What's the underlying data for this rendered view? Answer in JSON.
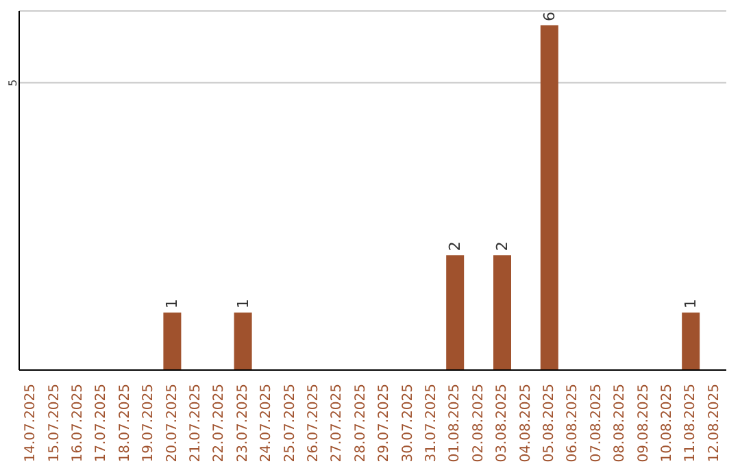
{
  "chart_data": {
    "type": "bar",
    "categories": [
      "14.07.2025",
      "15.07.2025",
      "16.07.2025",
      "17.07.2025",
      "18.07.2025",
      "19.07.2025",
      "20.07.2025",
      "21.07.2025",
      "22.07.2025",
      "23.07.2025",
      "24.07.2025",
      "25.07.2025",
      "26.07.2025",
      "27.07.2025",
      "28.07.2025",
      "29.07.2025",
      "30.07.2025",
      "31.07.2025",
      "01.08.2025",
      "02.08.2025",
      "03.08.2025",
      "04.08.2025",
      "05.08.2025",
      "06.08.2025",
      "07.08.2025",
      "08.08.2025",
      "09.08.2025",
      "10.08.2025",
      "11.08.2025",
      "12.08.2025"
    ],
    "values": [
      0,
      0,
      0,
      0,
      0,
      0,
      1,
      0,
      0,
      1,
      0,
      0,
      0,
      0,
      0,
      0,
      0,
      0,
      2,
      0,
      2,
      0,
      6,
      0,
      0,
      0,
      0,
      0,
      1,
      0
    ],
    "value_labels": [
      null,
      null,
      null,
      null,
      null,
      null,
      "1",
      null,
      null,
      "1",
      null,
      null,
      null,
      null,
      null,
      null,
      null,
      null,
      "2",
      null,
      "2",
      null,
      "6",
      null,
      null,
      null,
      null,
      null,
      "1",
      null
    ],
    "color": "#a0522d",
    "ylim": [
      0,
      6.25
    ],
    "yticks": [
      5
    ],
    "grid": "y"
  }
}
